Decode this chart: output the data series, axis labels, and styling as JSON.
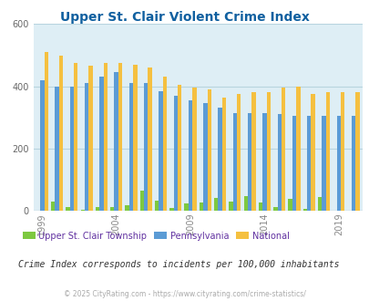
{
  "title": "Upper St. Clair Violent Crime Index",
  "title_color": "#1060a0",
  "years": [
    1999,
    2000,
    2001,
    2002,
    2003,
    2004,
    2005,
    2006,
    2007,
    2008,
    2009,
    2010,
    2011,
    2012,
    2013,
    2014,
    2015,
    2016,
    2017,
    2018,
    2019,
    2020
  ],
  "upper_st_clair": [
    0,
    28,
    13,
    2,
    12,
    12,
    18,
    65,
    33,
    10,
    22,
    27,
    42,
    30,
    47,
    25,
    12,
    37,
    5,
    44,
    0,
    0
  ],
  "pennsylvania": [
    420,
    400,
    400,
    410,
    430,
    445,
    410,
    410,
    385,
    370,
    355,
    345,
    330,
    315,
    315,
    315,
    310,
    305,
    305,
    305,
    305,
    305
  ],
  "national": [
    510,
    500,
    475,
    465,
    475,
    475,
    470,
    460,
    430,
    405,
    395,
    390,
    365,
    375,
    380,
    380,
    395,
    400,
    375,
    380,
    380,
    380
  ],
  "bar_colors": {
    "upper_st_clair": "#7dc940",
    "pennsylvania": "#5b9bd5",
    "national": "#f5c040"
  },
  "ylim": [
    0,
    600
  ],
  "yticks": [
    0,
    200,
    400,
    600
  ],
  "xlabel_ticks": [
    1999,
    2004,
    2009,
    2014,
    2019
  ],
  "plot_bg": "#deeef5",
  "grid_color": "#b8d4df",
  "legend_labels": [
    "Upper St. Clair Township",
    "Pennsylvania",
    "National"
  ],
  "legend_label_color": "#6030a0",
  "note": "Crime Index corresponds to incidents per 100,000 inhabitants",
  "note_color": "#333333",
  "copyright": "© 2025 CityRating.com - https://www.cityrating.com/crime-statistics/",
  "copyright_color": "#aaaaaa"
}
